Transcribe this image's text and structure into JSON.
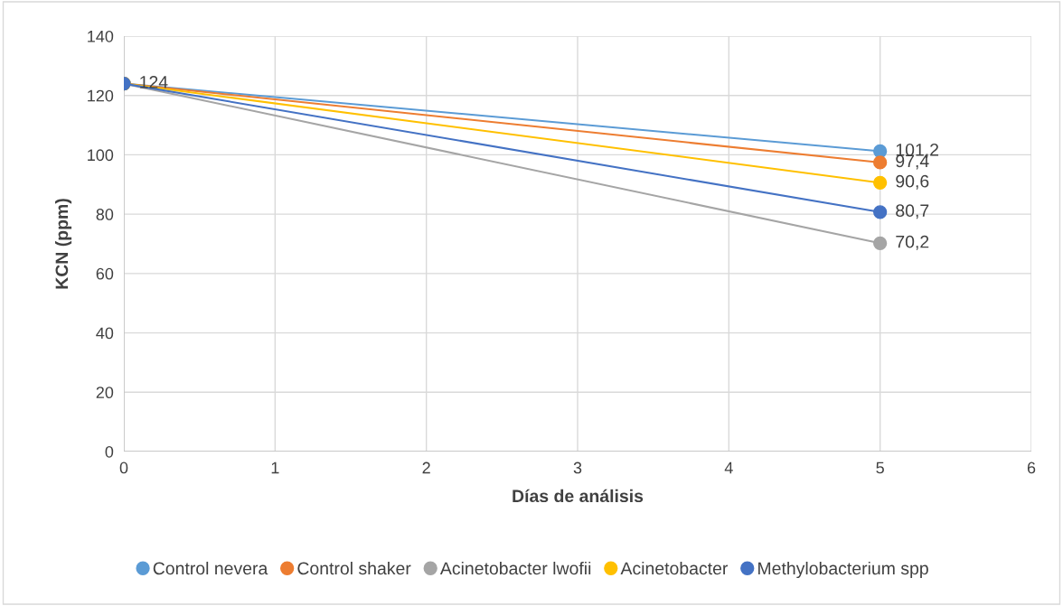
{
  "chart_data": {
    "type": "line",
    "xlabel": "Días de análisis",
    "ylabel": "KCN (ppm)",
    "x": [
      0,
      5
    ],
    "xlim": [
      0,
      6
    ],
    "xticks": [
      0,
      1,
      2,
      3,
      4,
      5,
      6
    ],
    "ylim": [
      0,
      140
    ],
    "yticks": [
      0,
      20,
      40,
      60,
      80,
      100,
      120,
      140
    ],
    "grid": true,
    "legend": "bottom",
    "marker": "circle",
    "line_style": "solid",
    "series": [
      {
        "name": "Control nevera",
        "color": "#5b9bd5",
        "values": [
          124,
          101.2
        ],
        "value_labels": [
          "124",
          "101,2"
        ]
      },
      {
        "name": "Control shaker",
        "color": "#ed7d31",
        "values": [
          124,
          97.4
        ],
        "value_labels": [
          null,
          "97,4"
        ]
      },
      {
        "name": "Acinetobacter lwofii",
        "color": "#a5a5a5",
        "values": [
          124,
          70.2
        ],
        "value_labels": [
          null,
          "70,2"
        ]
      },
      {
        "name": "Acinetobacter",
        "color": "#ffc000",
        "values": [
          124,
          90.6
        ],
        "value_labels": [
          null,
          "90,6"
        ]
      },
      {
        "name": "Methylobacterium spp",
        "color": "#4472c4",
        "values": [
          124,
          80.7
        ],
        "value_labels": [
          null,
          "80,7"
        ]
      }
    ]
  }
}
